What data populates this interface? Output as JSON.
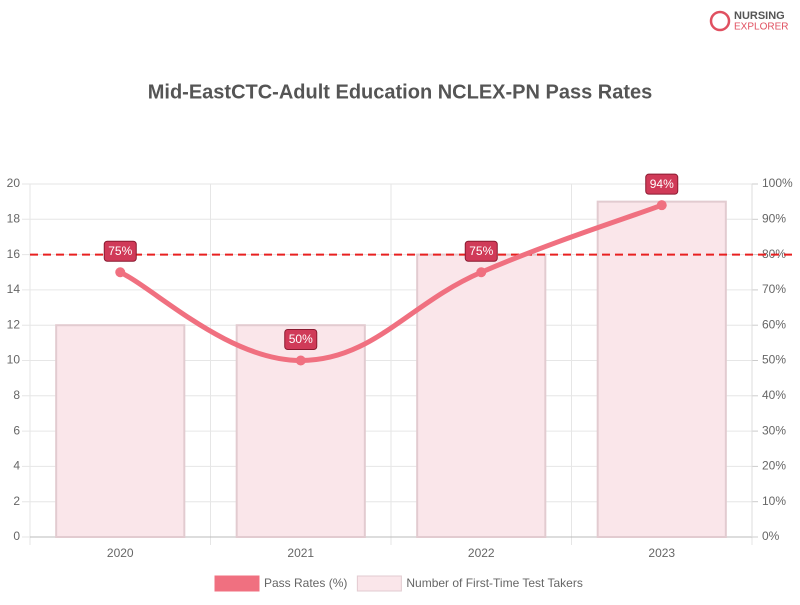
{
  "chart_data": {
    "type": "bar",
    "logo": [
      "NURSING",
      "EXPLORER"
    ],
    "title": "Mid-EastCTC-Adult Education NCLEX-PN Pass Rates",
    "categories": [
      "2020",
      "2021",
      "2022",
      "2023"
    ],
    "series": [
      {
        "name": "Pass Rates (%)",
        "type": "line",
        "axis": "y2",
        "color": "#f07080",
        "values": [
          75,
          50,
          75,
          94
        ],
        "value_labels": [
          "75%",
          "50%",
          "75%",
          "94%"
        ]
      },
      {
        "name": "Number of First-Time Test Takers",
        "type": "bar",
        "color": "#fae6ea",
        "values": [
          12,
          12,
          16,
          19
        ]
      }
    ],
    "reference_line": {
      "value": 80,
      "axis": "y2",
      "color": "#e82020"
    },
    "ylim": [
      0,
      20
    ],
    "yticks": [
      0,
      2,
      4,
      6,
      8,
      10,
      12,
      14,
      16,
      18,
      20
    ],
    "y2lim": [
      0,
      100
    ],
    "y2ticks": [
      {
        "value": 0,
        "label": "0%"
      },
      {
        "value": 10,
        "label": "10%"
      },
      {
        "value": 20,
        "label": "20%"
      },
      {
        "value": 30,
        "label": "30%"
      },
      {
        "value": 40,
        "label": "40%"
      },
      {
        "value": 50,
        "label": "50%"
      },
      {
        "value": 60,
        "label": "60%"
      },
      {
        "value": 70,
        "label": "70%"
      },
      {
        "value": 80,
        "label": "80%"
      },
      {
        "value": 90,
        "label": "90%"
      },
      {
        "value": 100,
        "label": "100%"
      }
    ],
    "grid": true
  }
}
